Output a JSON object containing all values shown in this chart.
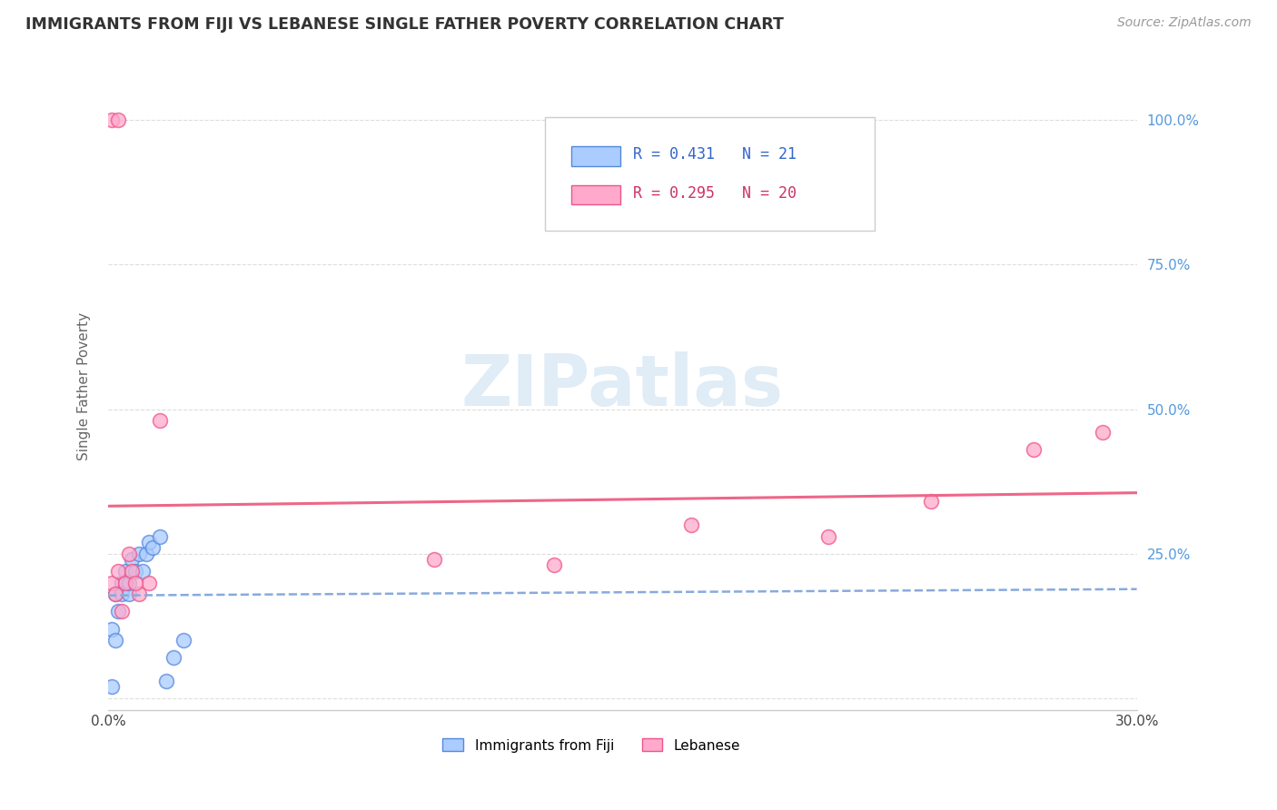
{
  "title": "IMMIGRANTS FROM FIJI VS LEBANESE SINGLE FATHER POVERTY CORRELATION CHART",
  "source": "Source: ZipAtlas.com",
  "ylabel": "Single Father Poverty",
  "xlim": [
    0.0,
    0.3
  ],
  "ylim": [
    -0.02,
    1.1
  ],
  "ytick_vals": [
    0.0,
    0.25,
    0.5,
    0.75,
    1.0
  ],
  "ytick_labels": [
    "",
    "25.0%",
    "50.0%",
    "75.0%",
    "100.0%"
  ],
  "xtick_vals": [
    0.0,
    0.05,
    0.1,
    0.15,
    0.2,
    0.25,
    0.3
  ],
  "xtick_labels": [
    "0.0%",
    "",
    "",
    "",
    "",
    "",
    "30.0%"
  ],
  "fiji_R": 0.431,
  "fiji_N": 21,
  "lebanese_R": 0.295,
  "lebanese_N": 20,
  "fiji_color": "#aaccff",
  "fiji_edge_color": "#5588dd",
  "lebanese_color": "#ffaacc",
  "lebanese_edge_color": "#ee5588",
  "trend_fiji_color": "#88aadd",
  "trend_lebanese_color": "#ee6688",
  "watermark": "ZIPatlas",
  "fiji_x": [
    0.001,
    0.001,
    0.002,
    0.002,
    0.003,
    0.004,
    0.004,
    0.005,
    0.006,
    0.006,
    0.007,
    0.008,
    0.009,
    0.01,
    0.011,
    0.012,
    0.013,
    0.015,
    0.017,
    0.019,
    0.022
  ],
  "fiji_y": [
    0.02,
    0.12,
    0.1,
    0.18,
    0.15,
    0.2,
    0.18,
    0.22,
    0.18,
    0.2,
    0.24,
    0.22,
    0.25,
    0.22,
    0.25,
    0.27,
    0.26,
    0.28,
    0.03,
    0.07,
    0.1
  ],
  "lebanese_x": [
    0.001,
    0.002,
    0.003,
    0.004,
    0.005,
    0.006,
    0.007,
    0.009,
    0.012,
    0.015,
    0.095,
    0.13,
    0.17,
    0.21,
    0.24,
    0.27,
    0.29,
    0.001,
    0.003,
    0.008
  ],
  "lebanese_y": [
    0.2,
    0.18,
    0.22,
    0.15,
    0.2,
    0.25,
    0.22,
    0.18,
    0.2,
    0.48,
    0.24,
    0.23,
    0.3,
    0.28,
    0.34,
    0.43,
    0.46,
    1.0,
    1.0,
    0.2
  ]
}
